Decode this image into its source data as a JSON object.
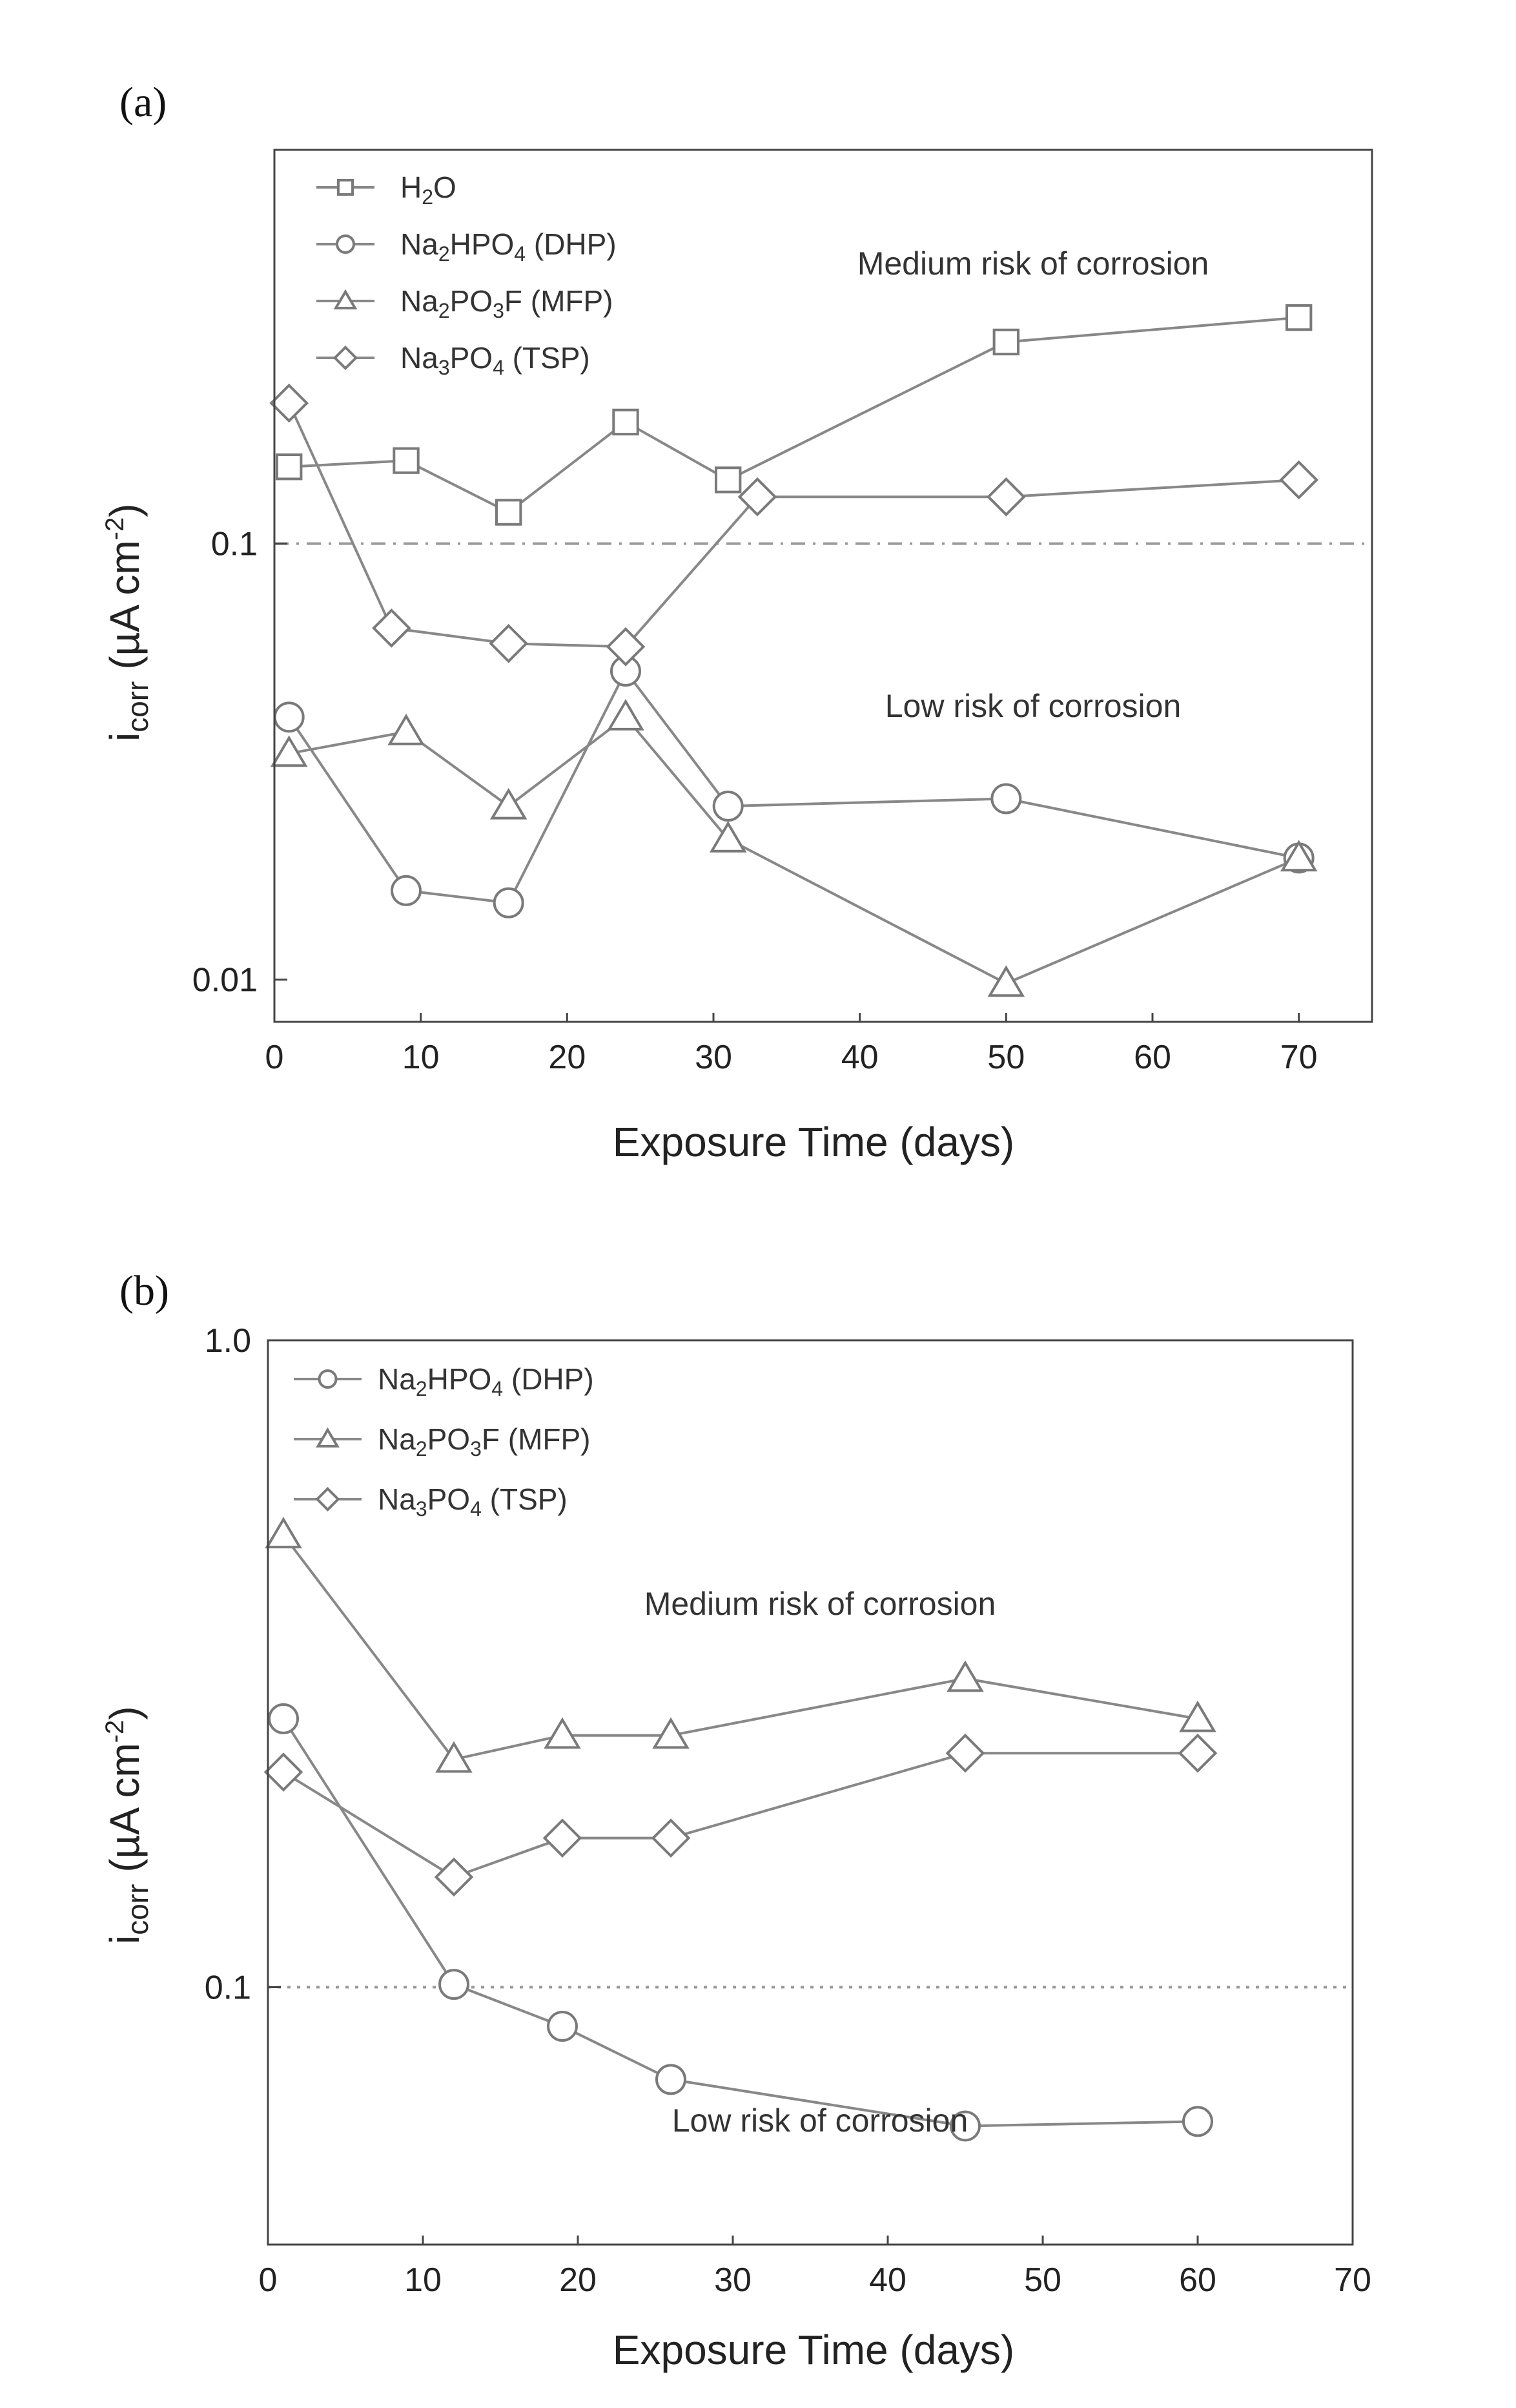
{
  "chart_data": [
    {
      "panel": "(a)",
      "type": "line",
      "yscale": "log",
      "xlabel": "Exposure Time (days)",
      "ylabel": {
        "main": "i",
        "sub": "corr",
        "units_open": " (µA cm",
        "units_sup": "-2",
        "units_close": ")"
      },
      "xlim": [
        0,
        75
      ],
      "ylim": [
        0.008,
        0.8
      ],
      "xticks": [
        0,
        10,
        20,
        30,
        40,
        50,
        60,
        70
      ],
      "xtick_labels": [
        "0",
        "10",
        "20",
        "30",
        "40",
        "50",
        "60",
        "70"
      ],
      "yticks": [
        0.01,
        0.1
      ],
      "ytick_labels": [
        "0.01",
        "0.1"
      ],
      "threshold": {
        "value": 0.1,
        "style": "dashdot"
      },
      "annotations": [
        {
          "text": "Medium risk of corrosion",
          "x": 54,
          "y": 0.5
        },
        {
          "text": "Low risk of corrosion",
          "x": 54,
          "y": 0.044
        }
      ],
      "legend_position": "top-left",
      "series": [
        {
          "name": "H2O",
          "label_parts": [
            "H",
            "2",
            "O",
            "",
            ""
          ],
          "marker": "square",
          "x": [
            1,
            9,
            16,
            24,
            31,
            50,
            70
          ],
          "y": [
            0.15,
            0.155,
            0.118,
            0.19,
            0.14,
            0.29,
            0.33
          ]
        },
        {
          "name": "Na2HPO4 (DHP)",
          "label_parts": [
            "Na",
            "2",
            "HPO",
            "4",
            " (DHP)"
          ],
          "marker": "circle",
          "x": [
            1,
            9,
            16,
            24,
            31,
            50,
            70
          ],
          "y": [
            0.04,
            0.016,
            0.015,
            0.051,
            0.025,
            0.026,
            0.019
          ]
        },
        {
          "name": "Na2PO3F (MFP)",
          "label_parts": [
            "Na",
            "2",
            "PO",
            "3",
            "F (MFP)"
          ],
          "marker": "triangle",
          "x": [
            1,
            9,
            16,
            24,
            31,
            50,
            70
          ],
          "y": [
            0.033,
            0.037,
            0.025,
            0.04,
            0.021,
            0.0098,
            0.019
          ]
        },
        {
          "name": "Na3PO4 (TSP)",
          "label_parts": [
            "Na",
            "3",
            "PO",
            "4",
            "   (TSP)"
          ],
          "marker": "diamond",
          "x": [
            1,
            8,
            16,
            24,
            33,
            50,
            70
          ],
          "y": [
            0.21,
            0.064,
            0.059,
            0.058,
            0.128,
            0.128,
            0.14
          ]
        }
      ]
    },
    {
      "panel": "(b)",
      "type": "line",
      "yscale": "log",
      "xlabel": "Exposure Time (days)",
      "ylabel": {
        "main": "i",
        "sub": "corr",
        "units_open": " (µA cm",
        "units_sup": "-2",
        "units_close": ")"
      },
      "xlim": [
        0,
        70
      ],
      "ylim": [
        0.04,
        1.0
      ],
      "xticks": [
        0,
        10,
        20,
        30,
        40,
        50,
        60,
        70
      ],
      "xtick_labels": [
        "0",
        "10",
        "20",
        "30",
        "40",
        "50",
        "60",
        "70"
      ],
      "yticks": [
        0.1,
        1.0
      ],
      "ytick_labels": [
        "0.1",
        "1.0"
      ],
      "threshold": {
        "value": 0.1,
        "style": "dotted"
      },
      "annotations": [
        {
          "text": "Medium risk of corrosion",
          "x": 27,
          "y": 0.36
        },
        {
          "text": "Low risk of corrosion",
          "x": 27,
          "y": 0.053
        }
      ],
      "legend_position": "top-left",
      "series": [
        {
          "name": "Na2HPO4 (DHP)",
          "label_parts": [
            "Na",
            "2",
            "HPO",
            "4",
            " (DHP)"
          ],
          "marker": "circle",
          "x": [
            1,
            12,
            19,
            26,
            45,
            60
          ],
          "y": [
            0.26,
            0.101,
            0.087,
            0.072,
            0.061,
            0.062
          ]
        },
        {
          "name": "Na2PO3F (MFP)",
          "label_parts": [
            "Na",
            "2",
            "PO",
            "3",
            "F (MFP)"
          ],
          "marker": "triangle",
          "x": [
            1,
            12,
            19,
            26,
            45,
            60
          ],
          "y": [
            0.5,
            0.225,
            0.245,
            0.245,
            0.3,
            0.26
          ]
        },
        {
          "name": "Na3PO4 (TSP)",
          "label_parts": [
            "Na",
            "3",
            "PO",
            "4",
            "   (TSP)"
          ],
          "marker": "diamond",
          "x": [
            1,
            12,
            19,
            26,
            45,
            60
          ],
          "y": [
            0.215,
            0.148,
            0.17,
            0.17,
            0.23,
            0.23
          ]
        }
      ]
    }
  ]
}
